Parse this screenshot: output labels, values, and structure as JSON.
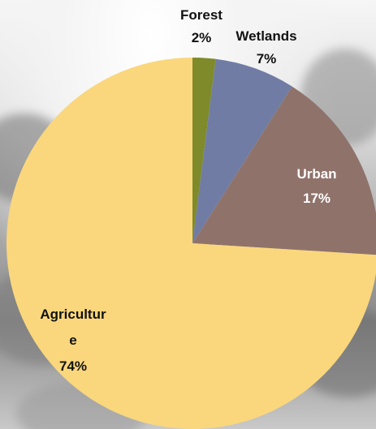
{
  "chart_data": {
    "type": "pie",
    "title": "",
    "slices": [
      {
        "label": "Forest",
        "value": 2,
        "display": "2%",
        "color": "#7f8b2a",
        "label_color": "#111111"
      },
      {
        "label": "Wetlands",
        "value": 7,
        "display": "7%",
        "color": "#707ca3",
        "label_color": "#111111"
      },
      {
        "label": "Urban",
        "value": 17,
        "display": "17%",
        "color": "#8f736b",
        "label_color": "#ffffff"
      },
      {
        "label": "Agriculture",
        "value": 74,
        "display": "74%",
        "color": "#fad77d",
        "label_color": "#111111"
      }
    ],
    "legend": "none",
    "start_angle": "12 o'clock",
    "direction": "clockwise"
  }
}
